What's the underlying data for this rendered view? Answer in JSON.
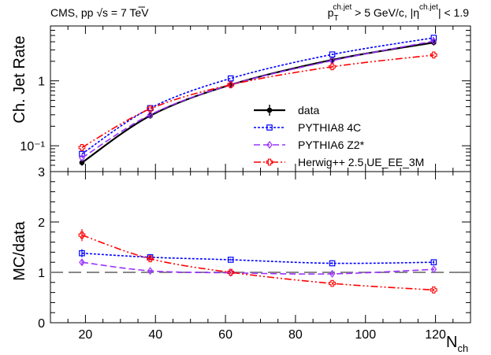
{
  "chart_data": [
    {
      "type": "line",
      "panel": "top",
      "header_left": {
        "prefix": "CMS, pp ",
        "root_symbol": "√",
        "energy": "s = 7 TeV"
      },
      "header_right": {
        "pt_symbol": "p",
        "pt_sub": "T",
        "pt_sup": "ch.jet",
        "pt_cut": " > 5 GeV/c, |η",
        "eta_sup": "ch.jet",
        "eta_cut": "| < 1.9"
      },
      "ylabel": "Ch. Jet Rate",
      "yscale": "log",
      "ylim": [
        0.04,
        7
      ],
      "ytick_labels": [
        "10⁻¹",
        "1"
      ],
      "xlim": [
        10,
        130
      ],
      "x": [
        19,
        38.5,
        61.5,
        90.5,
        119.5
      ],
      "series": [
        {
          "name": "data",
          "color": "#000000",
          "marker": "filled-circle",
          "values": [
            0.055,
            0.29,
            0.87,
            2.1,
            3.9
          ]
        },
        {
          "name": "PYTHIA8 4C",
          "color": "#0000ff",
          "marker": "open-square",
          "values": [
            0.075,
            0.38,
            1.09,
            2.55,
            4.6
          ]
        },
        {
          "name": "PYTHIA6 Z2*",
          "color": "#9933ff",
          "marker": "open-diamond",
          "values": [
            0.065,
            0.3,
            0.87,
            2.05,
            4.1
          ]
        },
        {
          "name": "Herwig++ 2.5  UE_EE_3M",
          "color": "#ff0000",
          "marker": "open-cross",
          "values": [
            0.094,
            0.37,
            0.87,
            1.65,
            2.5
          ]
        }
      ]
    },
    {
      "type": "line",
      "panel": "bottom",
      "ylabel": "MC/data",
      "ylim": [
        0,
        3
      ],
      "ytick_labels": [
        "0",
        "1",
        "2",
        "3"
      ],
      "xlabel": {
        "main": "N",
        "sub": "ch"
      },
      "xlim": [
        10,
        130
      ],
      "xtick_labels": [
        "20",
        "40",
        "60",
        "80",
        "100",
        "120"
      ],
      "reference_value": 1,
      "x": [
        19,
        38.5,
        61.5,
        90.5,
        119.5
      ],
      "series": [
        {
          "name": "PYTHIA8 4C",
          "color": "#0000ff",
          "marker": "open-square",
          "values": [
            1.38,
            1.3,
            1.25,
            1.18,
            1.2
          ],
          "errors": [
            0.08,
            0.03,
            0.02,
            0.02,
            0.03
          ]
        },
        {
          "name": "PYTHIA6 Z2*",
          "color": "#9933ff",
          "marker": "open-diamond",
          "values": [
            1.2,
            1.03,
            0.99,
            0.97,
            1.06
          ],
          "errors": [
            0.06,
            0.02,
            0.02,
            0.02,
            0.02
          ]
        },
        {
          "name": "Herwig++ 2.5  UE_EE_3M",
          "color": "#ff0000",
          "marker": "open-cross",
          "values": [
            1.74,
            1.27,
            1.0,
            0.78,
            0.65
          ],
          "errors": [
            0.12,
            0.03,
            0.02,
            0.02,
            0.02
          ]
        }
      ]
    }
  ]
}
